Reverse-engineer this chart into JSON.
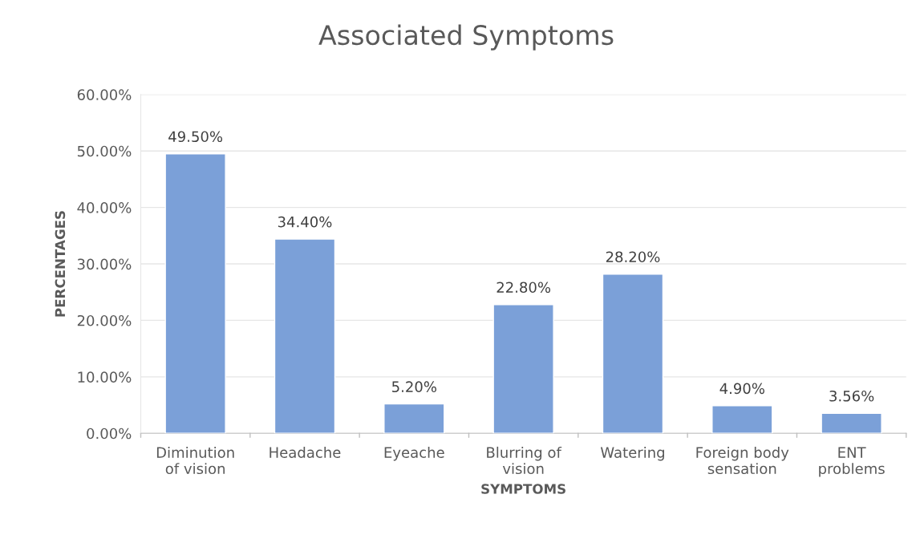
{
  "chart_data": {
    "type": "bar",
    "title": "Associated Symptoms",
    "xlabel": "SYMPTOMS",
    "ylabel": "PERCENTAGES",
    "categories": [
      "Diminution\nof vision",
      "Headache",
      "Eyeache",
      "Blurring of\nvision",
      "Watering",
      "Foreign body\nsensation",
      "ENT\nproblems"
    ],
    "values": [
      49.5,
      34.4,
      5.2,
      22.8,
      28.2,
      4.9,
      3.56
    ],
    "value_labels": [
      "49.50%",
      "34.40%",
      "5.20%",
      "22.80%",
      "28.20%",
      "4.90%",
      "3.56%"
    ],
    "color": "#7ba0d8",
    "ylim": [
      0,
      60
    ],
    "yticks": [
      {
        "value": 0,
        "label": "0.00%"
      },
      {
        "value": 10,
        "label": "10.00%"
      },
      {
        "value": 20,
        "label": "20.00%"
      },
      {
        "value": 30,
        "label": "30.00%"
      },
      {
        "value": 40,
        "label": "40.00%"
      },
      {
        "value": 50,
        "label": "50.00%"
      },
      {
        "value": 60,
        "label": "60.00%"
      }
    ],
    "grid": "y",
    "legend": false
  }
}
